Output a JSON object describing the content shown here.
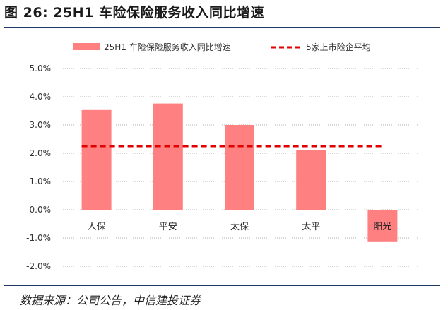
{
  "figure_title": "图 26: 25H1 车险保险服务收入同比增速",
  "source_note": "数据来源：公司公告，中信建投证券",
  "colors": {
    "bar": "#ff8080",
    "avg_line": "#e00000",
    "grid": "#b0b0b0",
    "rule": "#1f3a64"
  },
  "chart_data": {
    "type": "bar",
    "categories": [
      "人保",
      "平安",
      "太保",
      "太平",
      "阳光"
    ],
    "series": [
      {
        "name": "25H1 车险保险服务收入同比增速",
        "values": [
          3.53,
          3.76,
          3.0,
          2.12,
          -1.12
        ]
      }
    ],
    "reference_line": {
      "name": "5家上市险企平均",
      "value": 2.25
    },
    "y_ticks": [
      "5.0%",
      "4.0%",
      "3.0%",
      "2.0%",
      "1.0%",
      "0.0%",
      "-1.0%",
      "-2.0%"
    ],
    "ylim": [
      -2,
      5
    ],
    "y_unit": "%",
    "grid": "horizontal dotted",
    "legend_position": "top"
  }
}
